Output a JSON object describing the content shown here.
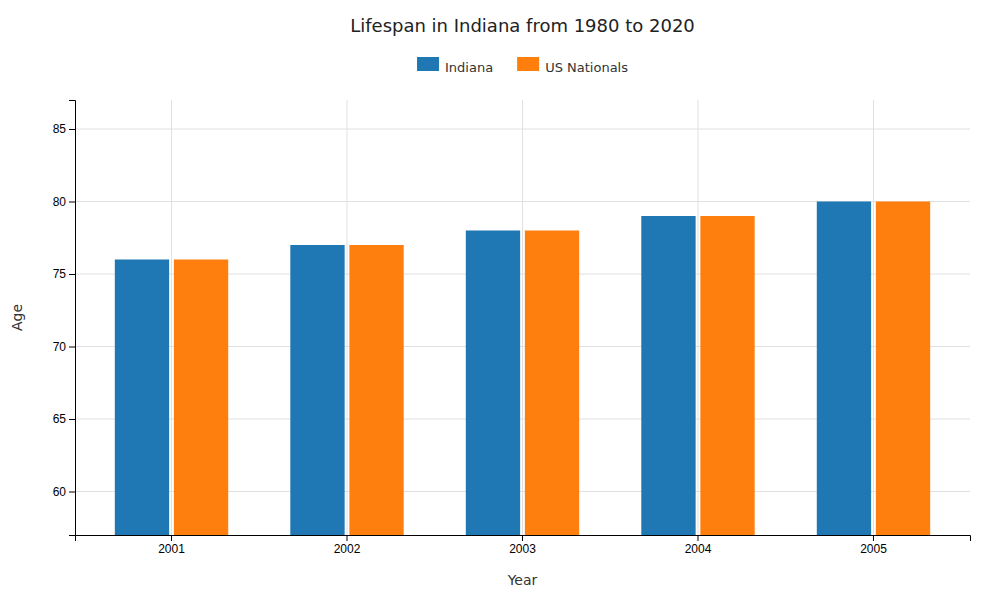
{
  "chart_data": {
    "type": "bar",
    "title": "Lifespan in Indiana from 1980 to 2020",
    "xlabel": "Year",
    "ylabel": "Age",
    "categories": [
      "2001",
      "2002",
      "2003",
      "2004",
      "2005"
    ],
    "series": [
      {
        "name": "Indiana",
        "values": [
          76,
          77,
          78,
          79,
          80
        ]
      },
      {
        "name": "US Nationals",
        "values": [
          76,
          77,
          78,
          79,
          80
        ]
      }
    ],
    "ylim": [
      57,
      87
    ],
    "yticks": [
      60,
      65,
      70,
      75,
      80,
      85
    ],
    "grid": true,
    "legend": "top"
  }
}
